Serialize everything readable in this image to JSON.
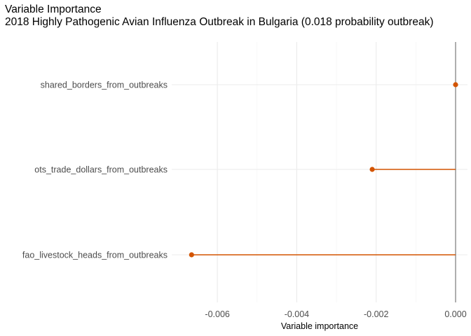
{
  "chart_data": {
    "type": "lollipop",
    "title": "Variable Importance",
    "subtitle": "2018 Highly Pathogenic Avian Influenza Outbreak in Bulgaria (0.018 probability outbreak)",
    "xlabel": "Variable importance",
    "ylabel": "",
    "xlim": [
      -0.00715,
      0.0003
    ],
    "x_ticks": [
      -0.006,
      -0.004,
      -0.002,
      0.0
    ],
    "x_tick_labels": [
      "-0.006",
      "-0.004",
      "-0.002",
      "0.000"
    ],
    "grid": true,
    "reference_line": 0,
    "categories": [
      "shared_borders_from_outbreaks",
      "ots_trade_dollars_from_outbreaks",
      "fao_livestock_heads_from_outbreaks"
    ],
    "values": [
      0.0,
      -0.0021,
      -0.00665
    ],
    "colors": {
      "point": "#d35400",
      "segment": "#d35400",
      "zero_line": "#6e6e6e",
      "grid_major": "#ebebeb",
      "grid_minor": "#f4f4f4",
      "text": "#4d4d4d"
    }
  }
}
